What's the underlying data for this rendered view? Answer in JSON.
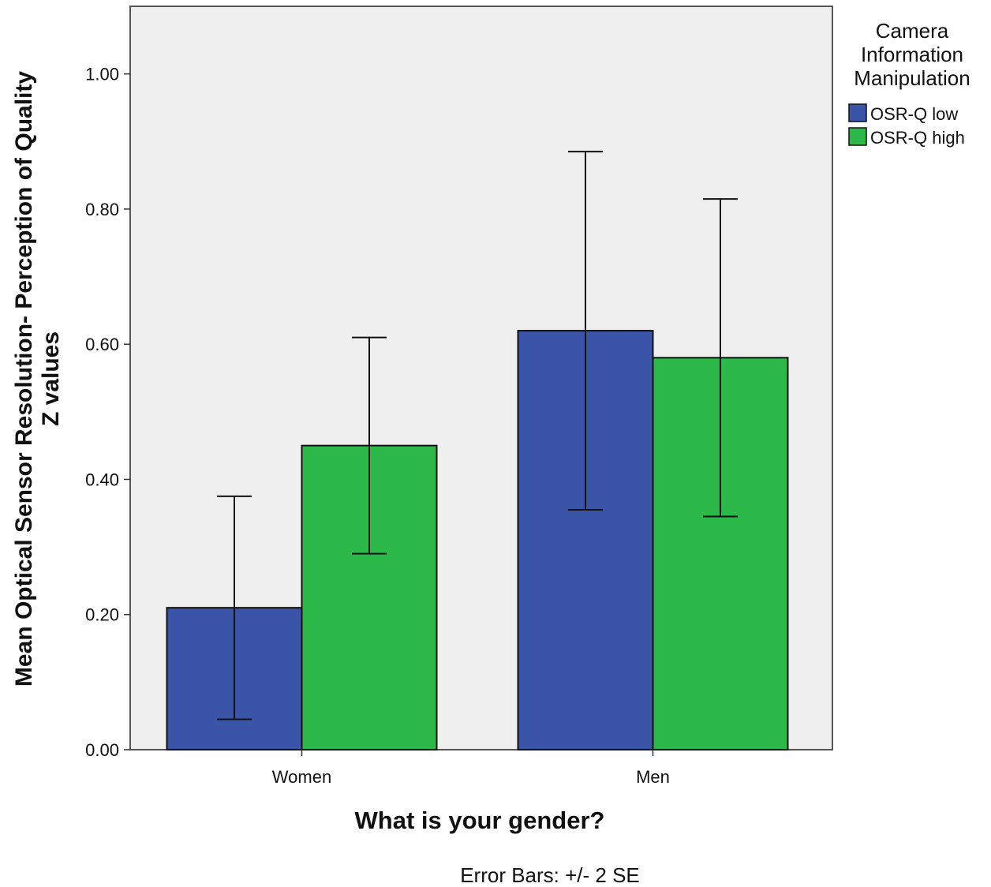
{
  "chart_data": {
    "type": "bar",
    "categories": [
      "Women",
      "Men"
    ],
    "series": [
      {
        "name": "OSR-Q low",
        "color": "#3a55a7",
        "values": [
          0.21,
          0.62
        ],
        "err_low": [
          0.045,
          0.355
        ],
        "err_high": [
          0.375,
          0.885
        ]
      },
      {
        "name": "OSR-Q high",
        "color": "#2db84a",
        "values": [
          0.45,
          0.58
        ],
        "err_low": [
          0.29,
          0.345
        ],
        "err_high": [
          0.61,
          0.815
        ]
      }
    ],
    "xlabel": "What is your gender?",
    "ylabel_line1": "Mean Optical Sensor Resolution- Perception of Quality",
    "ylabel_line2": "Z values",
    "ylim": [
      0,
      1.1
    ],
    "yticks": [
      0,
      0.2,
      0.4,
      0.6,
      0.8,
      1.0
    ],
    "ytick_labels": [
      "0.00",
      "0.20",
      "0.40",
      "0.60",
      "0.80",
      "1.00"
    ],
    "legend_title_lines": [
      "Camera",
      "Information",
      "Manipulation"
    ],
    "legend_position": "right",
    "footnote": "Error Bars: +/- 2 SE",
    "plot_background": "#efefef",
    "grid": false
  }
}
